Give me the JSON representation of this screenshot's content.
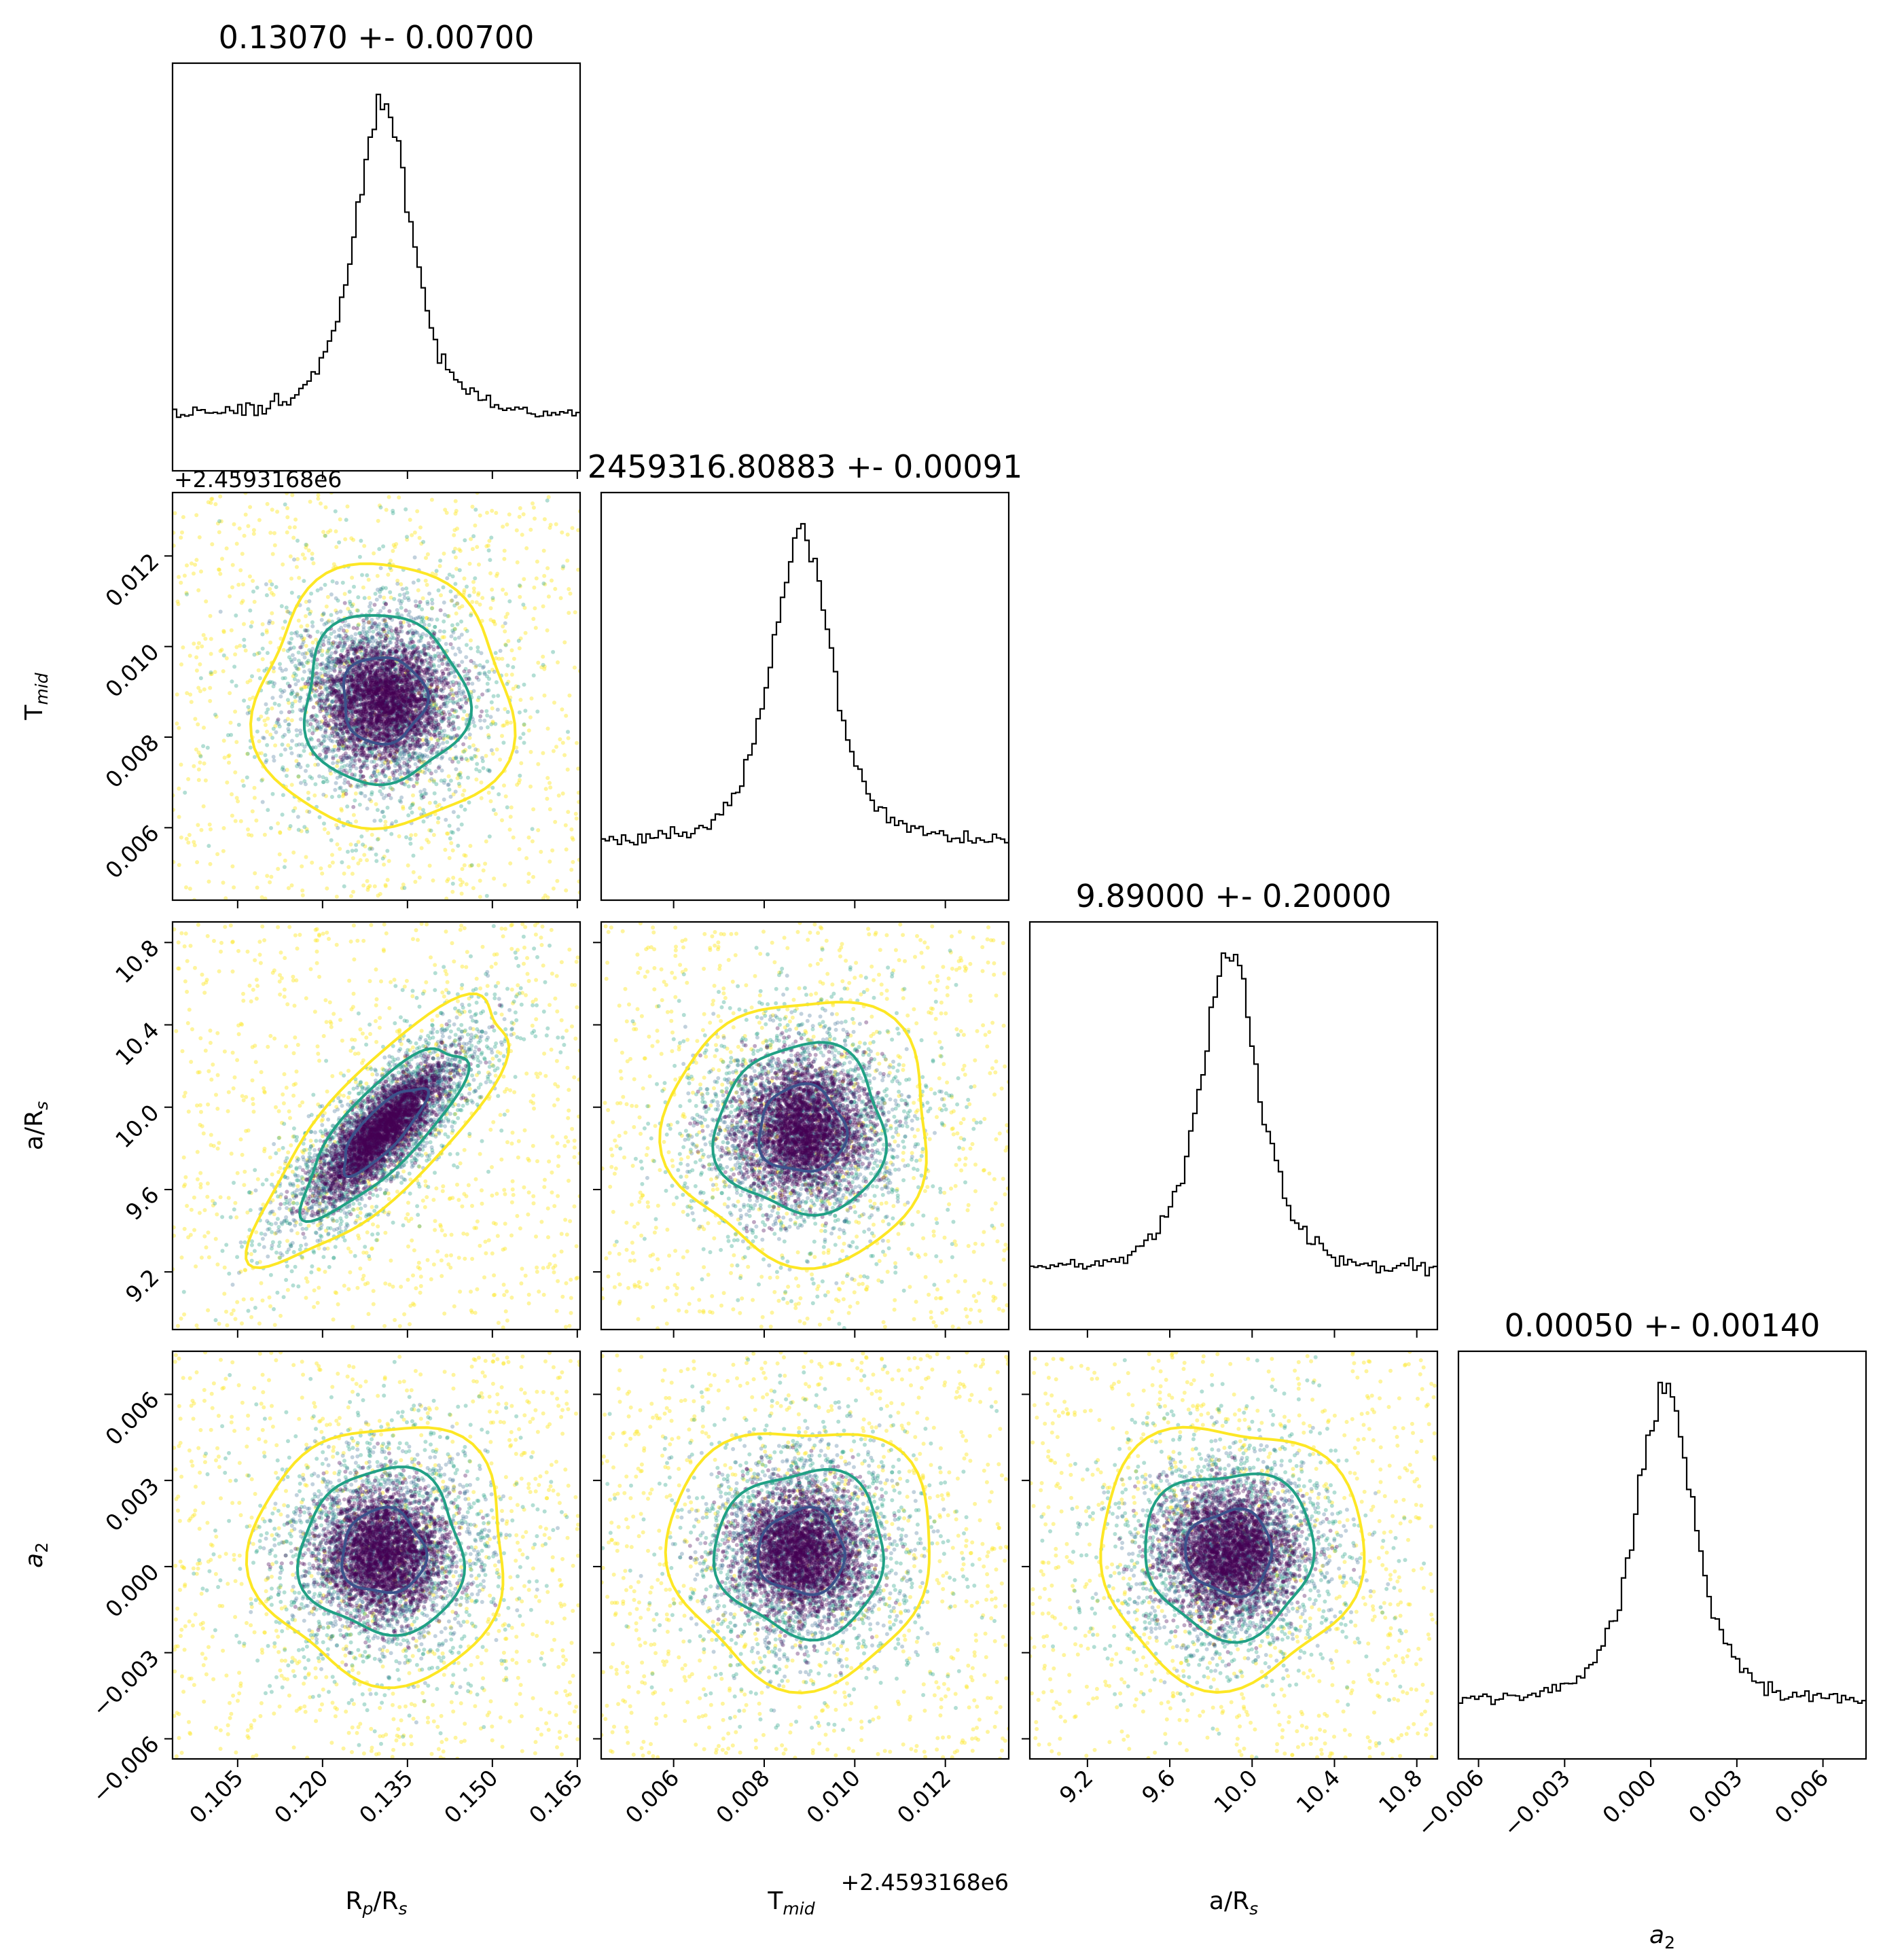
{
  "chart_data": {
    "type": "corner",
    "parameters": [
      {
        "name": "R_p/R_s",
        "label_main": "R",
        "label_sub": "p",
        "label_tail": "/R",
        "label_tail_sub": "s",
        "mean": 0.1307,
        "std": 0.007,
        "range": [
          0.0935,
          0.1655
        ],
        "title": "0.13070 +- 0.00700",
        "ticks": [
          "0.105",
          "0.120",
          "0.135",
          "0.150",
          "0.165"
        ],
        "tick_values": [
          0.105,
          0.12,
          0.135,
          0.15,
          0.165
        ]
      },
      {
        "name": "T_mid",
        "label_main": "T",
        "label_sub": "mid",
        "label_tail": "",
        "label_tail_sub": "",
        "mean": 0.00883,
        "std": 0.00091,
        "range": [
          0.0044,
          0.0134
        ],
        "offset": "+2.4593168e6",
        "title": "2459316.80883 +- 0.00091",
        "ticks": [
          "0.006",
          "0.008",
          "0.010",
          "0.012"
        ],
        "tick_values": [
          0.006,
          0.008,
          0.01,
          0.012
        ]
      },
      {
        "name": "a/R_s",
        "label_main": "a/R",
        "label_sub": "s",
        "label_tail": "",
        "label_tail_sub": "",
        "mean": 9.89,
        "std": 0.2,
        "range": [
          8.92,
          10.9
        ],
        "title": "9.89000 +- 0.20000",
        "ticks": [
          "9.2",
          "9.6",
          "10.0",
          "10.4",
          "10.8"
        ],
        "tick_values": [
          9.2,
          9.6,
          10.0,
          10.4,
          10.8
        ]
      },
      {
        "name": "a_2",
        "label_main": "a",
        "label_sub": "2",
        "label_tail": "",
        "label_tail_sub": "",
        "italic": true,
        "mean": 0.0005,
        "std": 0.0014,
        "range": [
          -0.0067,
          0.0075
        ],
        "title": "0.00050 +- 0.00140",
        "ticks": [
          "−0.006",
          "−0.003",
          "0.000",
          "0.003",
          "0.006"
        ],
        "tick_values": [
          -0.006,
          -0.003,
          0.0,
          0.003,
          0.006
        ]
      }
    ],
    "correlation": {
      "2_0": 0.8
    },
    "contour_levels": [
      "1-sigma",
      "2-sigma",
      "3-sigma"
    ],
    "histogram_bins": 100,
    "point_colormap": "viridis",
    "grid": false,
    "legend": "none"
  },
  "colors": {
    "sigma1": "#3b528b",
    "sigma2": "#21a185",
    "sigma3": "#fde725",
    "dense": "#440154",
    "hist": "#000000",
    "frame": "#000000"
  }
}
